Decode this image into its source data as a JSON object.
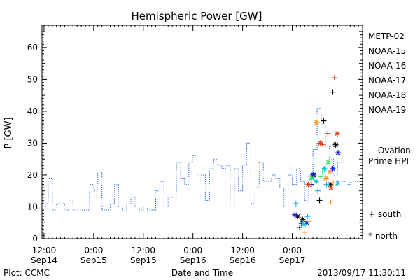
{
  "chart_data": {
    "type": "scatter",
    "title": "Hemispheric Power [GW]",
    "ylabel": "P [GW]",
    "xlabel": "Date and Time",
    "ylim": [
      0,
      67
    ],
    "xlim_hours": [
      -12.5,
      65
    ],
    "y_ticks": [
      0,
      10,
      20,
      30,
      40,
      50,
      60
    ],
    "x_ticks": [
      {
        "h": -12,
        "time": "12:00",
        "date": "Sep14"
      },
      {
        "h": 0,
        "time": "0:00",
        "date": "Sep15"
      },
      {
        "h": 12,
        "time": "12:00",
        "date": "Sep15"
      },
      {
        "h": 24,
        "time": "0:00",
        "date": "Sep16"
      },
      {
        "h": 36,
        "time": "12:00",
        "date": "Sep16"
      },
      {
        "h": 48,
        "time": "0:00",
        "date": "Sep17"
      }
    ],
    "x_origin": "2013-09-15 00:00",
    "footer_left": "Plot: CCMC",
    "footer_right": "2013/09/17 11:30:11",
    "ovation": {
      "label_line1": "– Ovation",
      "label_line2": "Prime HPI",
      "color": "#1f5fd0",
      "points": [
        [
          -12.5,
          10
        ],
        [
          -11.5,
          11
        ],
        [
          -11,
          19
        ],
        [
          -10,
          9
        ],
        [
          -9,
          11
        ],
        [
          -7,
          9
        ],
        [
          -6,
          12
        ],
        [
          -5,
          9
        ],
        [
          -2,
          9
        ],
        [
          -1,
          17
        ],
        [
          0,
          15
        ],
        [
          1,
          21
        ],
        [
          2,
          9
        ],
        [
          4,
          11
        ],
        [
          5,
          17
        ],
        [
          6,
          10
        ],
        [
          7,
          9
        ],
        [
          8,
          11
        ],
        [
          9,
          13
        ],
        [
          10,
          10
        ],
        [
          11,
          9
        ],
        [
          12,
          10
        ],
        [
          13,
          9
        ],
        [
          14,
          9
        ],
        [
          15,
          15
        ],
        [
          16,
          18
        ],
        [
          17,
          10
        ],
        [
          18,
          13
        ],
        [
          20,
          24
        ],
        [
          21,
          19
        ],
        [
          22,
          17
        ],
        [
          23,
          24
        ],
        [
          24,
          26
        ],
        [
          25,
          20
        ],
        [
          27,
          12
        ],
        [
          28,
          22
        ],
        [
          29,
          25
        ],
        [
          30,
          23
        ],
        [
          31,
          22
        ],
        [
          32,
          23
        ],
        [
          33,
          10
        ],
        [
          34,
          22
        ],
        [
          35,
          15
        ],
        [
          36,
          23
        ],
        [
          37,
          30
        ],
        [
          38,
          11
        ],
        [
          39,
          16
        ],
        [
          40,
          24
        ],
        [
          41,
          18
        ],
        [
          42,
          18
        ],
        [
          43,
          20
        ],
        [
          44,
          19
        ],
        [
          45,
          16
        ],
        [
          46,
          10
        ],
        [
          47,
          20
        ],
        [
          48,
          17
        ],
        [
          49,
          22
        ],
        [
          50,
          18
        ],
        [
          51,
          12
        ],
        [
          52,
          20
        ],
        [
          53,
          28
        ],
        [
          54,
          41
        ],
        [
          55,
          36
        ],
        [
          56,
          29
        ],
        [
          57,
          25
        ],
        [
          58,
          20
        ],
        [
          59,
          24
        ],
        [
          60,
          18
        ],
        [
          61,
          17
        ],
        [
          62,
          18
        ]
      ]
    },
    "series": [
      {
        "name": "METP-02",
        "color": "#000000",
        "south": [
          [
            49.8,
            3.5
          ],
          [
            54.6,
            12
          ],
          [
            55.6,
            37
          ],
          [
            57.8,
            46
          ]
        ],
        "north": [
          [
            49.3,
            7
          ],
          [
            50.5,
            6
          ],
          [
            53.2,
            20
          ],
          [
            58.5,
            29.5
          ],
          [
            57.2,
            17
          ]
        ]
      },
      {
        "name": "NOAA-15",
        "color": "#0b1fd6",
        "south": [
          [
            50.2,
            4.8
          ],
          [
            52.6,
            17
          ]
        ],
        "north": [
          [
            48.6,
            7.5
          ],
          [
            51.5,
            5
          ],
          [
            53.0,
            20
          ],
          [
            57.8,
            22
          ],
          [
            59.1,
            27
          ]
        ]
      },
      {
        "name": "NOAA-16",
        "color": "#1fb8e0",
        "south": [
          [
            48.9,
            11
          ],
          [
            51.7,
            7
          ],
          [
            54.2,
            15
          ],
          [
            56.3,
            17
          ]
        ],
        "north": [
          [
            50.8,
            4.5
          ],
          [
            55.8,
            22
          ],
          [
            59.0,
            17.5
          ],
          [
            53.8,
            18
          ]
        ]
      },
      {
        "name": "NOAA-17",
        "color": "#2ee06a",
        "south": [
          [
            50.6,
            5
          ],
          [
            54.9,
            19.5
          ],
          [
            55.3,
            21
          ]
        ],
        "north": [
          [
            52.7,
            19
          ],
          [
            56.7,
            24
          ]
        ]
      },
      {
        "name": "NOAA-18",
        "color": "#f59a1a",
        "south": [
          [
            50.9,
            2
          ],
          [
            52.1,
            5.5
          ],
          [
            57.3,
            11.5
          ],
          [
            57.9,
            17.5
          ]
        ],
        "north": [
          [
            53.9,
            36.5
          ],
          [
            56.2,
            19
          ],
          [
            57.1,
            21
          ]
        ]
      },
      {
        "name": "NOAA-19",
        "color": "#e03a1a",
        "south": [
          [
            55.4,
            29.5
          ],
          [
            56.6,
            33
          ],
          [
            58.2,
            50.5
          ]
        ],
        "north": [
          [
            51.9,
            17
          ],
          [
            54.8,
            30
          ],
          [
            58.9,
            33
          ],
          [
            57.4,
            16
          ]
        ]
      }
    ],
    "marker_legend": {
      "south": "+ south",
      "north": "* north"
    }
  }
}
